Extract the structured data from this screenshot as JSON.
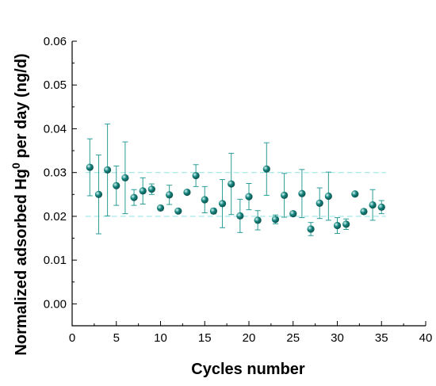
{
  "chart_data": {
    "type": "scatter",
    "xlabel": "Cycles number",
    "ylabel": "Normalized adsorbed Hg",
    "ylabel_sup": "0",
    "ylabel_tail": " per day (ng/d)",
    "xlim": [
      0,
      40
    ],
    "ylim": [
      -0.005,
      0.06
    ],
    "xticks": [
      0,
      5,
      10,
      15,
      20,
      25,
      30,
      35,
      40
    ],
    "xtick_labels": [
      "0",
      "5",
      "10",
      "15",
      "20",
      "25",
      "30",
      "35",
      "40"
    ],
    "yticks": [
      0.0,
      0.01,
      0.02,
      0.03,
      0.04,
      0.05,
      0.06
    ],
    "ytick_labels": [
      "0.00",
      "0.01",
      "0.02",
      "0.03",
      "0.04",
      "0.05",
      "0.06"
    ],
    "grid": false,
    "marker_color": "#17837d",
    "reference_lines": [
      0.02,
      0.03
    ],
    "x": [
      2,
      3,
      4,
      5,
      6,
      7,
      8,
      9,
      10,
      11,
      12,
      13,
      14,
      15,
      16,
      17,
      18,
      19,
      20,
      21,
      22,
      23,
      24,
      25,
      26,
      27,
      28,
      29,
      30,
      31,
      32,
      33,
      34,
      35
    ],
    "y": [
      0.0312,
      0.025,
      0.0306,
      0.027,
      0.0288,
      0.0243,
      0.0258,
      0.0262,
      0.0219,
      0.0249,
      0.0212,
      0.0255,
      0.0293,
      0.0238,
      0.0212,
      0.0229,
      0.0274,
      0.0201,
      0.0245,
      0.0191,
      0.0308,
      0.0193,
      0.0248,
      0.0206,
      0.0252,
      0.0171,
      0.023,
      0.0246,
      0.0179,
      0.0182,
      0.0251,
      0.0211,
      0.0226,
      0.0221
    ],
    "error": [
      0.0065,
      0.009,
      0.0105,
      0.0045,
      0.0082,
      0.0018,
      0.003,
      0.0012,
      0.0003,
      0.0022,
      0.0003,
      0.0003,
      0.0025,
      0.003,
      0.0006,
      0.0055,
      0.007,
      0.0038,
      0.003,
      0.0022,
      0.006,
      0.001,
      0.005,
      0.0005,
      0.0055,
      0.0015,
      0.0035,
      0.0055,
      0.0018,
      0.0012,
      0.0004,
      0.0005,
      0.0035,
      0.0015
    ]
  }
}
